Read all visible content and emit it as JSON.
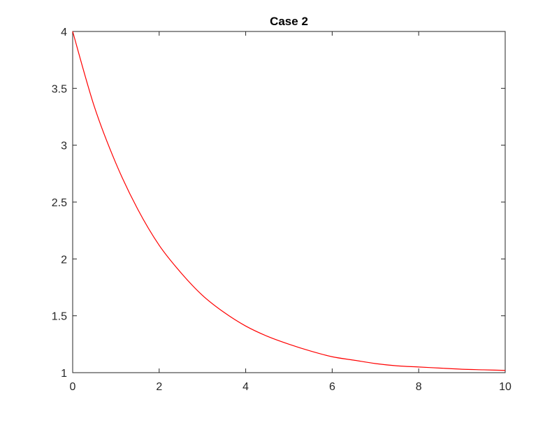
{
  "chart_data": {
    "type": "line",
    "title": "Case 2",
    "xlabel": "",
    "ylabel": "",
    "xlim": [
      0,
      10
    ],
    "ylim": [
      1,
      4
    ],
    "xticks": [
      0,
      2,
      4,
      6,
      8,
      10
    ],
    "yticks": [
      1,
      1.5,
      2,
      2.5,
      3,
      3.5,
      4
    ],
    "xtick_labels": [
      "0",
      "2",
      "4",
      "6",
      "8",
      "10"
    ],
    "ytick_labels": [
      "1",
      "1.5",
      "2",
      "2.5",
      "3",
      "3.5",
      "4"
    ],
    "grid": false,
    "box": true,
    "series": [
      {
        "color": "#ff0000",
        "x": [
          0,
          0.5,
          1,
          1.5,
          2,
          2.5,
          3,
          3.5,
          4,
          4.5,
          5,
          5.5,
          6,
          6.5,
          7,
          7.5,
          8,
          8.5,
          9,
          9.5,
          10
        ],
        "y": [
          4.0,
          3.34,
          2.84,
          2.44,
          2.12,
          1.88,
          1.68,
          1.53,
          1.41,
          1.32,
          1.25,
          1.19,
          1.14,
          1.11,
          1.08,
          1.06,
          1.05,
          1.04,
          1.03,
          1.025,
          1.02
        ]
      }
    ]
  }
}
